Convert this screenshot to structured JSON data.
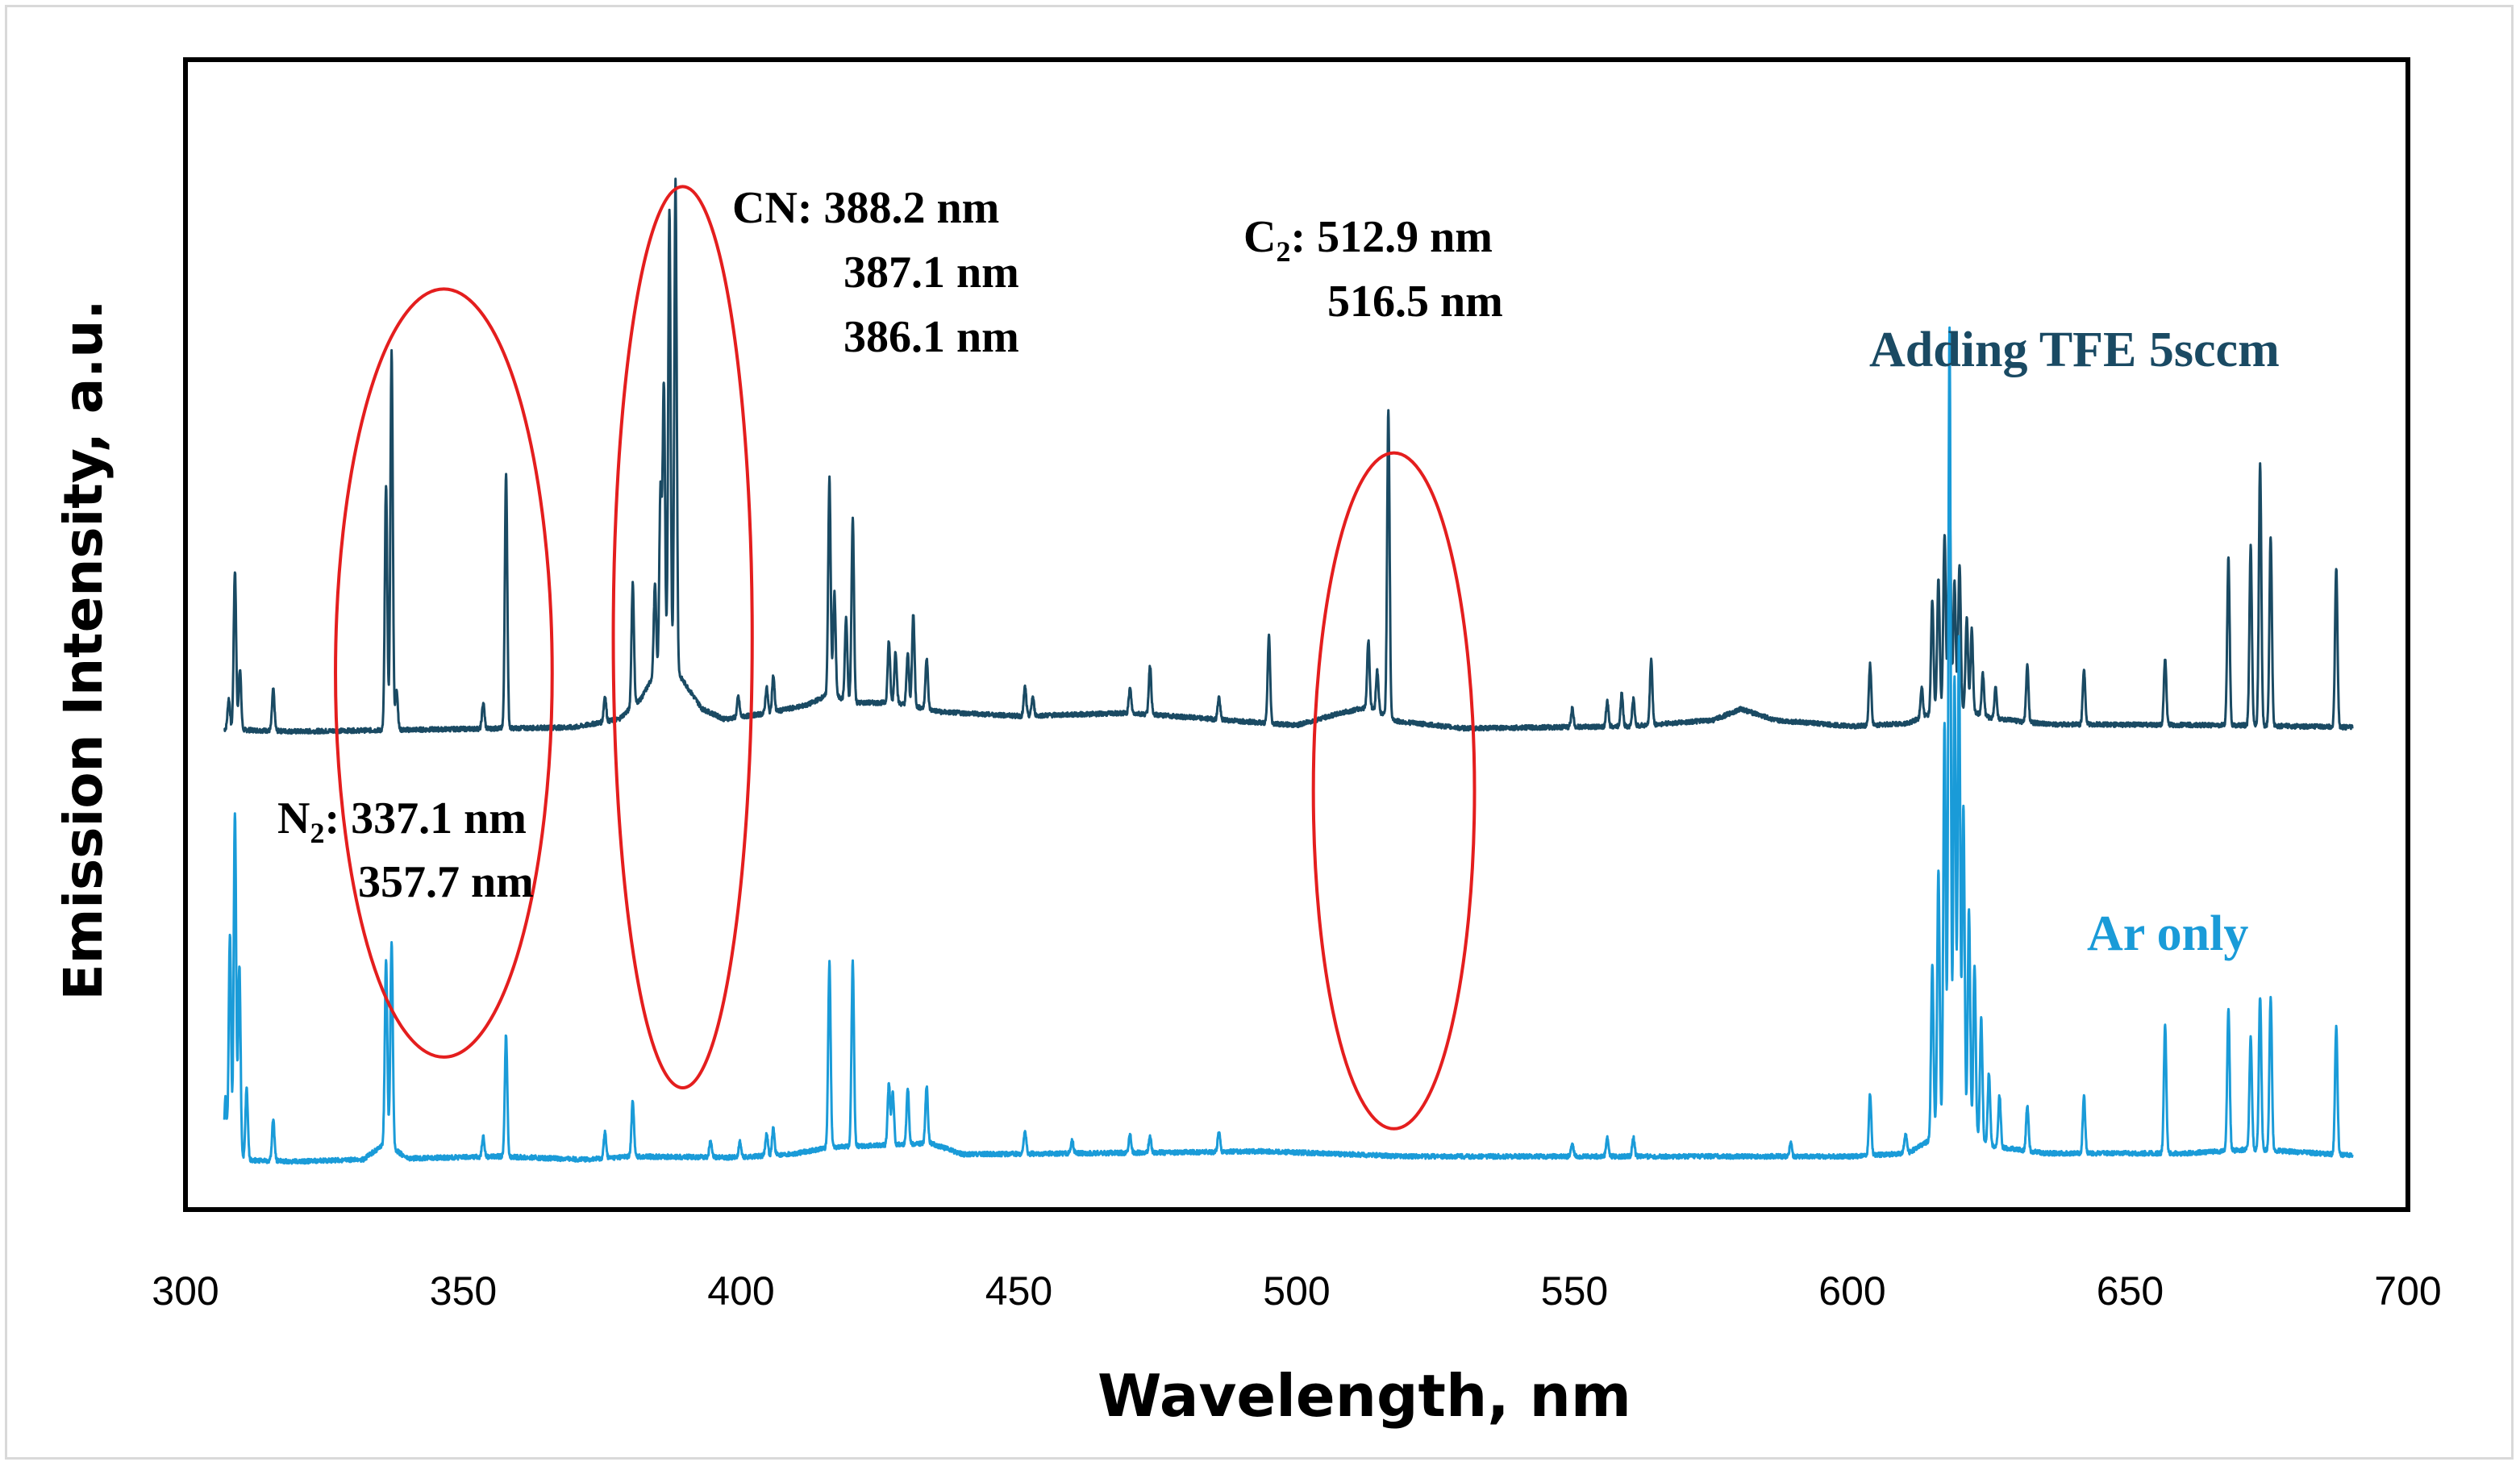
{
  "chart_data": {
    "type": "line",
    "title": "",
    "xlabel": "Wavelength, nm",
    "ylabel": "Emission Intensity, a.u.",
    "xlim": [
      300,
      700
    ],
    "xticks": [
      300,
      350,
      400,
      450,
      500,
      550,
      600,
      650,
      700
    ],
    "ylim": [
      0,
      100
    ],
    "grid": false,
    "legend": "none",
    "series": [
      {
        "name": "Adding TFE 5sccm",
        "color": "#1a4a63",
        "baseline": 45,
        "baseline_shape": [
          [
            307,
            45
          ],
          [
            320,
            44.8
          ],
          [
            345,
            45
          ],
          [
            370,
            45.2
          ],
          [
            378,
            46
          ],
          [
            382,
            48
          ],
          [
            384,
            50
          ],
          [
            388,
            51
          ],
          [
            393,
            47
          ],
          [
            397,
            46
          ],
          [
            405,
            46.6
          ],
          [
            412,
            47.4
          ],
          [
            416,
            48.5
          ],
          [
            420,
            47.6
          ],
          [
            428,
            47.6
          ],
          [
            436,
            46.7
          ],
          [
            450,
            46.3
          ],
          [
            470,
            46.6
          ],
          [
            480,
            46.2
          ],
          [
            500,
            45.4
          ],
          [
            508,
            46.6
          ],
          [
            513,
            47.2
          ],
          [
            518,
            45.8
          ],
          [
            530,
            45.1
          ],
          [
            560,
            45.3
          ],
          [
            575,
            45.9
          ],
          [
            580,
            47.0
          ],
          [
            586,
            45.9
          ],
          [
            600,
            45.3
          ],
          [
            610,
            45.6
          ],
          [
            618,
            47.4
          ],
          [
            625,
            46.1
          ],
          [
            635,
            45.5
          ],
          [
            670,
            45.4
          ],
          [
            690,
            45.2
          ]
        ],
        "peaks": [
          {
            "x": 307.8,
            "h": 3
          },
          {
            "x": 308.9,
            "h": 15.5
          },
          {
            "x": 309.8,
            "h": 6
          },
          {
            "x": 315.8,
            "h": 4
          },
          {
            "x": 336.1,
            "h": 24
          },
          {
            "x": 337.1,
            "h": 37
          },
          {
            "x": 338.0,
            "h": 4
          },
          {
            "x": 353.6,
            "h": 2.5
          },
          {
            "x": 357.7,
            "h": 25
          },
          {
            "x": 375.5,
            "h": 2.5
          },
          {
            "x": 380.5,
            "h": 12
          },
          {
            "x": 384.5,
            "h": 9
          },
          {
            "x": 385.5,
            "h": 18
          },
          {
            "x": 386.1,
            "h": 28
          },
          {
            "x": 387.1,
            "h": 45
          },
          {
            "x": 388.2,
            "h": 48
          },
          {
            "x": 399.5,
            "h": 2
          },
          {
            "x": 404.6,
            "h": 2.5
          },
          {
            "x": 405.8,
            "h": 3.5
          },
          {
            "x": 415.9,
            "h": 21
          },
          {
            "x": 416.8,
            "h": 10
          },
          {
            "x": 418.9,
            "h": 8
          },
          {
            "x": 420.1,
            "h": 18
          },
          {
            "x": 426.6,
            "h": 6
          },
          {
            "x": 427.8,
            "h": 5
          },
          {
            "x": 430.0,
            "h": 5
          },
          {
            "x": 431.0,
            "h": 9
          },
          {
            "x": 433.4,
            "h": 5
          },
          {
            "x": 451.1,
            "h": 2.8
          },
          {
            "x": 452.5,
            "h": 1.8
          },
          {
            "x": 470.0,
            "h": 2.4
          },
          {
            "x": 473.6,
            "h": 4.8
          },
          {
            "x": 486.0,
            "h": 2.2
          },
          {
            "x": 495.0,
            "h": 8.6
          },
          {
            "x": 512.9,
            "h": 6.5
          },
          {
            "x": 514.5,
            "h": 4
          },
          {
            "x": 516.5,
            "h": 30
          },
          {
            "x": 549.6,
            "h": 1.8
          },
          {
            "x": 555.9,
            "h": 2.4
          },
          {
            "x": 558.5,
            "h": 3.2
          },
          {
            "x": 560.6,
            "h": 2.6
          },
          {
            "x": 563.8,
            "h": 6.4
          },
          {
            "x": 603.2,
            "h": 6
          },
          {
            "x": 612.5,
            "h": 3
          },
          {
            "x": 614.4,
            "h": 11
          },
          {
            "x": 615.5,
            "h": 13
          },
          {
            "x": 616.6,
            "h": 17
          },
          {
            "x": 617.5,
            "h": 21
          },
          {
            "x": 618.4,
            "h": 12
          },
          {
            "x": 619.3,
            "h": 14
          },
          {
            "x": 620.6,
            "h": 9
          },
          {
            "x": 621.5,
            "h": 8
          },
          {
            "x": 623.5,
            "h": 4
          },
          {
            "x": 625.8,
            "h": 3
          },
          {
            "x": 631.5,
            "h": 5.5
          },
          {
            "x": 641.7,
            "h": 5.5
          },
          {
            "x": 656.3,
            "h": 6.5
          },
          {
            "x": 667.7,
            "h": 16.5
          },
          {
            "x": 671.7,
            "h": 17.5
          },
          {
            "x": 673.4,
            "h": 25.5
          },
          {
            "x": 675.3,
            "h": 18.5
          },
          {
            "x": 687.1,
            "h": 15.5
          }
        ]
      },
      {
        "name": "Ar only",
        "color": "#1a9bd8",
        "baseline": 3,
        "baseline_shape": [
          [
            307,
            3
          ],
          [
            320,
            2.8
          ],
          [
            332,
            3.0
          ],
          [
            336,
            4.6
          ],
          [
            340,
            3.1
          ],
          [
            356,
            3.3
          ],
          [
            372,
            3.0
          ],
          [
            380,
            3.3
          ],
          [
            400,
            3.2
          ],
          [
            410,
            3.6
          ],
          [
            416,
            4.2
          ],
          [
            425,
            4.4
          ],
          [
            434,
            4.6
          ],
          [
            440,
            3.5
          ],
          [
            480,
            3.7
          ],
          [
            494,
            3.8
          ],
          [
            520,
            3.3
          ],
          [
            600,
            3.3
          ],
          [
            610,
            3.6
          ],
          [
            618,
            6.2
          ],
          [
            625,
            4.3
          ],
          [
            635,
            3.6
          ],
          [
            660,
            3.6
          ],
          [
            672,
            4.0
          ],
          [
            690,
            3.4
          ]
        ],
        "peaks": [
          {
            "x": 307.2,
            "h": 6
          },
          {
            "x": 308.0,
            "h": 22
          },
          {
            "x": 308.9,
            "h": 34
          },
          {
            "x": 309.7,
            "h": 19
          },
          {
            "x": 311.0,
            "h": 7
          },
          {
            "x": 315.8,
            "h": 4
          },
          {
            "x": 336.1,
            "h": 18
          },
          {
            "x": 337.1,
            "h": 20
          },
          {
            "x": 353.6,
            "h": 2
          },
          {
            "x": 357.7,
            "h": 12
          },
          {
            "x": 375.5,
            "h": 2.5
          },
          {
            "x": 380.5,
            "h": 5.5
          },
          {
            "x": 394.5,
            "h": 1.5
          },
          {
            "x": 399.8,
            "h": 1.5
          },
          {
            "x": 404.6,
            "h": 2.2
          },
          {
            "x": 405.8,
            "h": 2.6
          },
          {
            "x": 415.9,
            "h": 18
          },
          {
            "x": 420.1,
            "h": 18
          },
          {
            "x": 426.6,
            "h": 6
          },
          {
            "x": 427.3,
            "h": 5
          },
          {
            "x": 430.0,
            "h": 5.5
          },
          {
            "x": 433.4,
            "h": 5.5
          },
          {
            "x": 451.1,
            "h": 2.2
          },
          {
            "x": 459.6,
            "h": 1.2
          },
          {
            "x": 470.0,
            "h": 1.8
          },
          {
            "x": 473.6,
            "h": 1.5
          },
          {
            "x": 486.0,
            "h": 2
          },
          {
            "x": 549.6,
            "h": 1.3
          },
          {
            "x": 555.9,
            "h": 1.8
          },
          {
            "x": 560.6,
            "h": 1.8
          },
          {
            "x": 588.9,
            "h": 1.3
          },
          {
            "x": 603.2,
            "h": 6
          },
          {
            "x": 609.6,
            "h": 2
          },
          {
            "x": 614.4,
            "h": 17
          },
          {
            "x": 615.5,
            "h": 26
          },
          {
            "x": 616.6,
            "h": 40
          },
          {
            "x": 617.5,
            "h": 78
          },
          {
            "x": 618.4,
            "h": 44
          },
          {
            "x": 619.2,
            "h": 48
          },
          {
            "x": 620.0,
            "h": 32
          },
          {
            "x": 621.0,
            "h": 22
          },
          {
            "x": 622.0,
            "h": 17
          },
          {
            "x": 623.2,
            "h": 12
          },
          {
            "x": 624.6,
            "h": 7
          },
          {
            "x": 626.5,
            "h": 5
          },
          {
            "x": 631.5,
            "h": 4.5
          },
          {
            "x": 641.7,
            "h": 5.5
          },
          {
            "x": 656.3,
            "h": 12.5
          },
          {
            "x": 667.7,
            "h": 14
          },
          {
            "x": 671.7,
            "h": 11
          },
          {
            "x": 673.4,
            "h": 15
          },
          {
            "x": 675.3,
            "h": 15
          },
          {
            "x": 687.1,
            "h": 12.5
          }
        ]
      }
    ],
    "annotations": [
      {
        "id": "n2",
        "lines": [
          "N₂: 337.1 nm",
          "357.7 nm"
        ]
      },
      {
        "id": "cn",
        "lines": [
          "CN: 388.2 nm",
          "387.1 nm",
          "386.1 nm"
        ]
      },
      {
        "id": "c2",
        "lines": [
          "C₂: 512.9 nm",
          "516.5 nm"
        ]
      }
    ],
    "highlight_ellipses": [
      {
        "target": "N2",
        "x_range": [
          327,
          366
        ],
        "y_range": [
          13,
          88
        ]
      },
      {
        "target": "CN",
        "x_range": [
          377,
          402
        ],
        "y_range": [
          10,
          98
        ]
      },
      {
        "target": "C2",
        "x_range": [
          503,
          532
        ],
        "y_range": [
          6,
          72
        ]
      }
    ],
    "highlight_color": "#e41e1e"
  },
  "series_labels": {
    "tfe": "Adding TFE 5sccm",
    "ar": "Ar only"
  },
  "annotation_text": {
    "n2_prefix": "N",
    "n2_sub": "2",
    "n2_line1_rest": ": 337.1 nm",
    "n2_line2": "357.7 nm",
    "cn_line1": "CN: 388.2 nm",
    "cn_line2": "387.1 nm",
    "cn_line3": "386.1 nm",
    "c2_prefix": "C",
    "c2_sub": "2",
    "c2_line1_rest": ": 512.9 nm",
    "c2_line2": "516.5 nm"
  }
}
